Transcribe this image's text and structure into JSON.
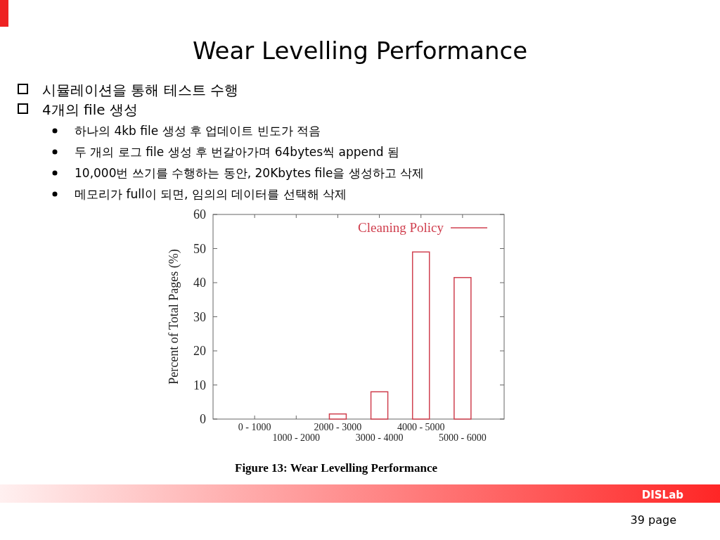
{
  "chart_data": {
    "type": "bar",
    "title": "Wear Levelling Performance",
    "ylabel": "Percent of Total Pages (%)",
    "categories": [
      "0 - 1000",
      "1000 - 2000",
      "2000 - 3000",
      "3000 - 4000",
      "4000 - 5000",
      "5000 - 6000"
    ],
    "series": [
      {
        "name": "Cleaning Policy",
        "color": "#d0404f",
        "values": [
          0,
          0,
          1.5,
          8,
          49,
          41.5
        ]
      }
    ],
    "ylim": [
      0,
      60
    ],
    "yticks": [
      0,
      10,
      20,
      30,
      40,
      50,
      60
    ],
    "legend": "top right",
    "annotations": [
      "시뮬레이션을 통해 테스트 수행",
      "4개의 file 생성",
      "하나의 4kb file 생성 후 업데이트 빈도가 적음",
      "두 개의 로그 file 생성 후 번갈아가며 64bytes씩 append 됨",
      "10,000번 쓰기를 수행하는 동안, 20Kbytes file을 생성하고 삭제",
      "메모리가 full이 되면, 임의의 데이터를 선택해 삭제",
      "Figure 13: Wear Levelling Performance",
      "DISLab",
      "39 page"
    ]
  }
}
